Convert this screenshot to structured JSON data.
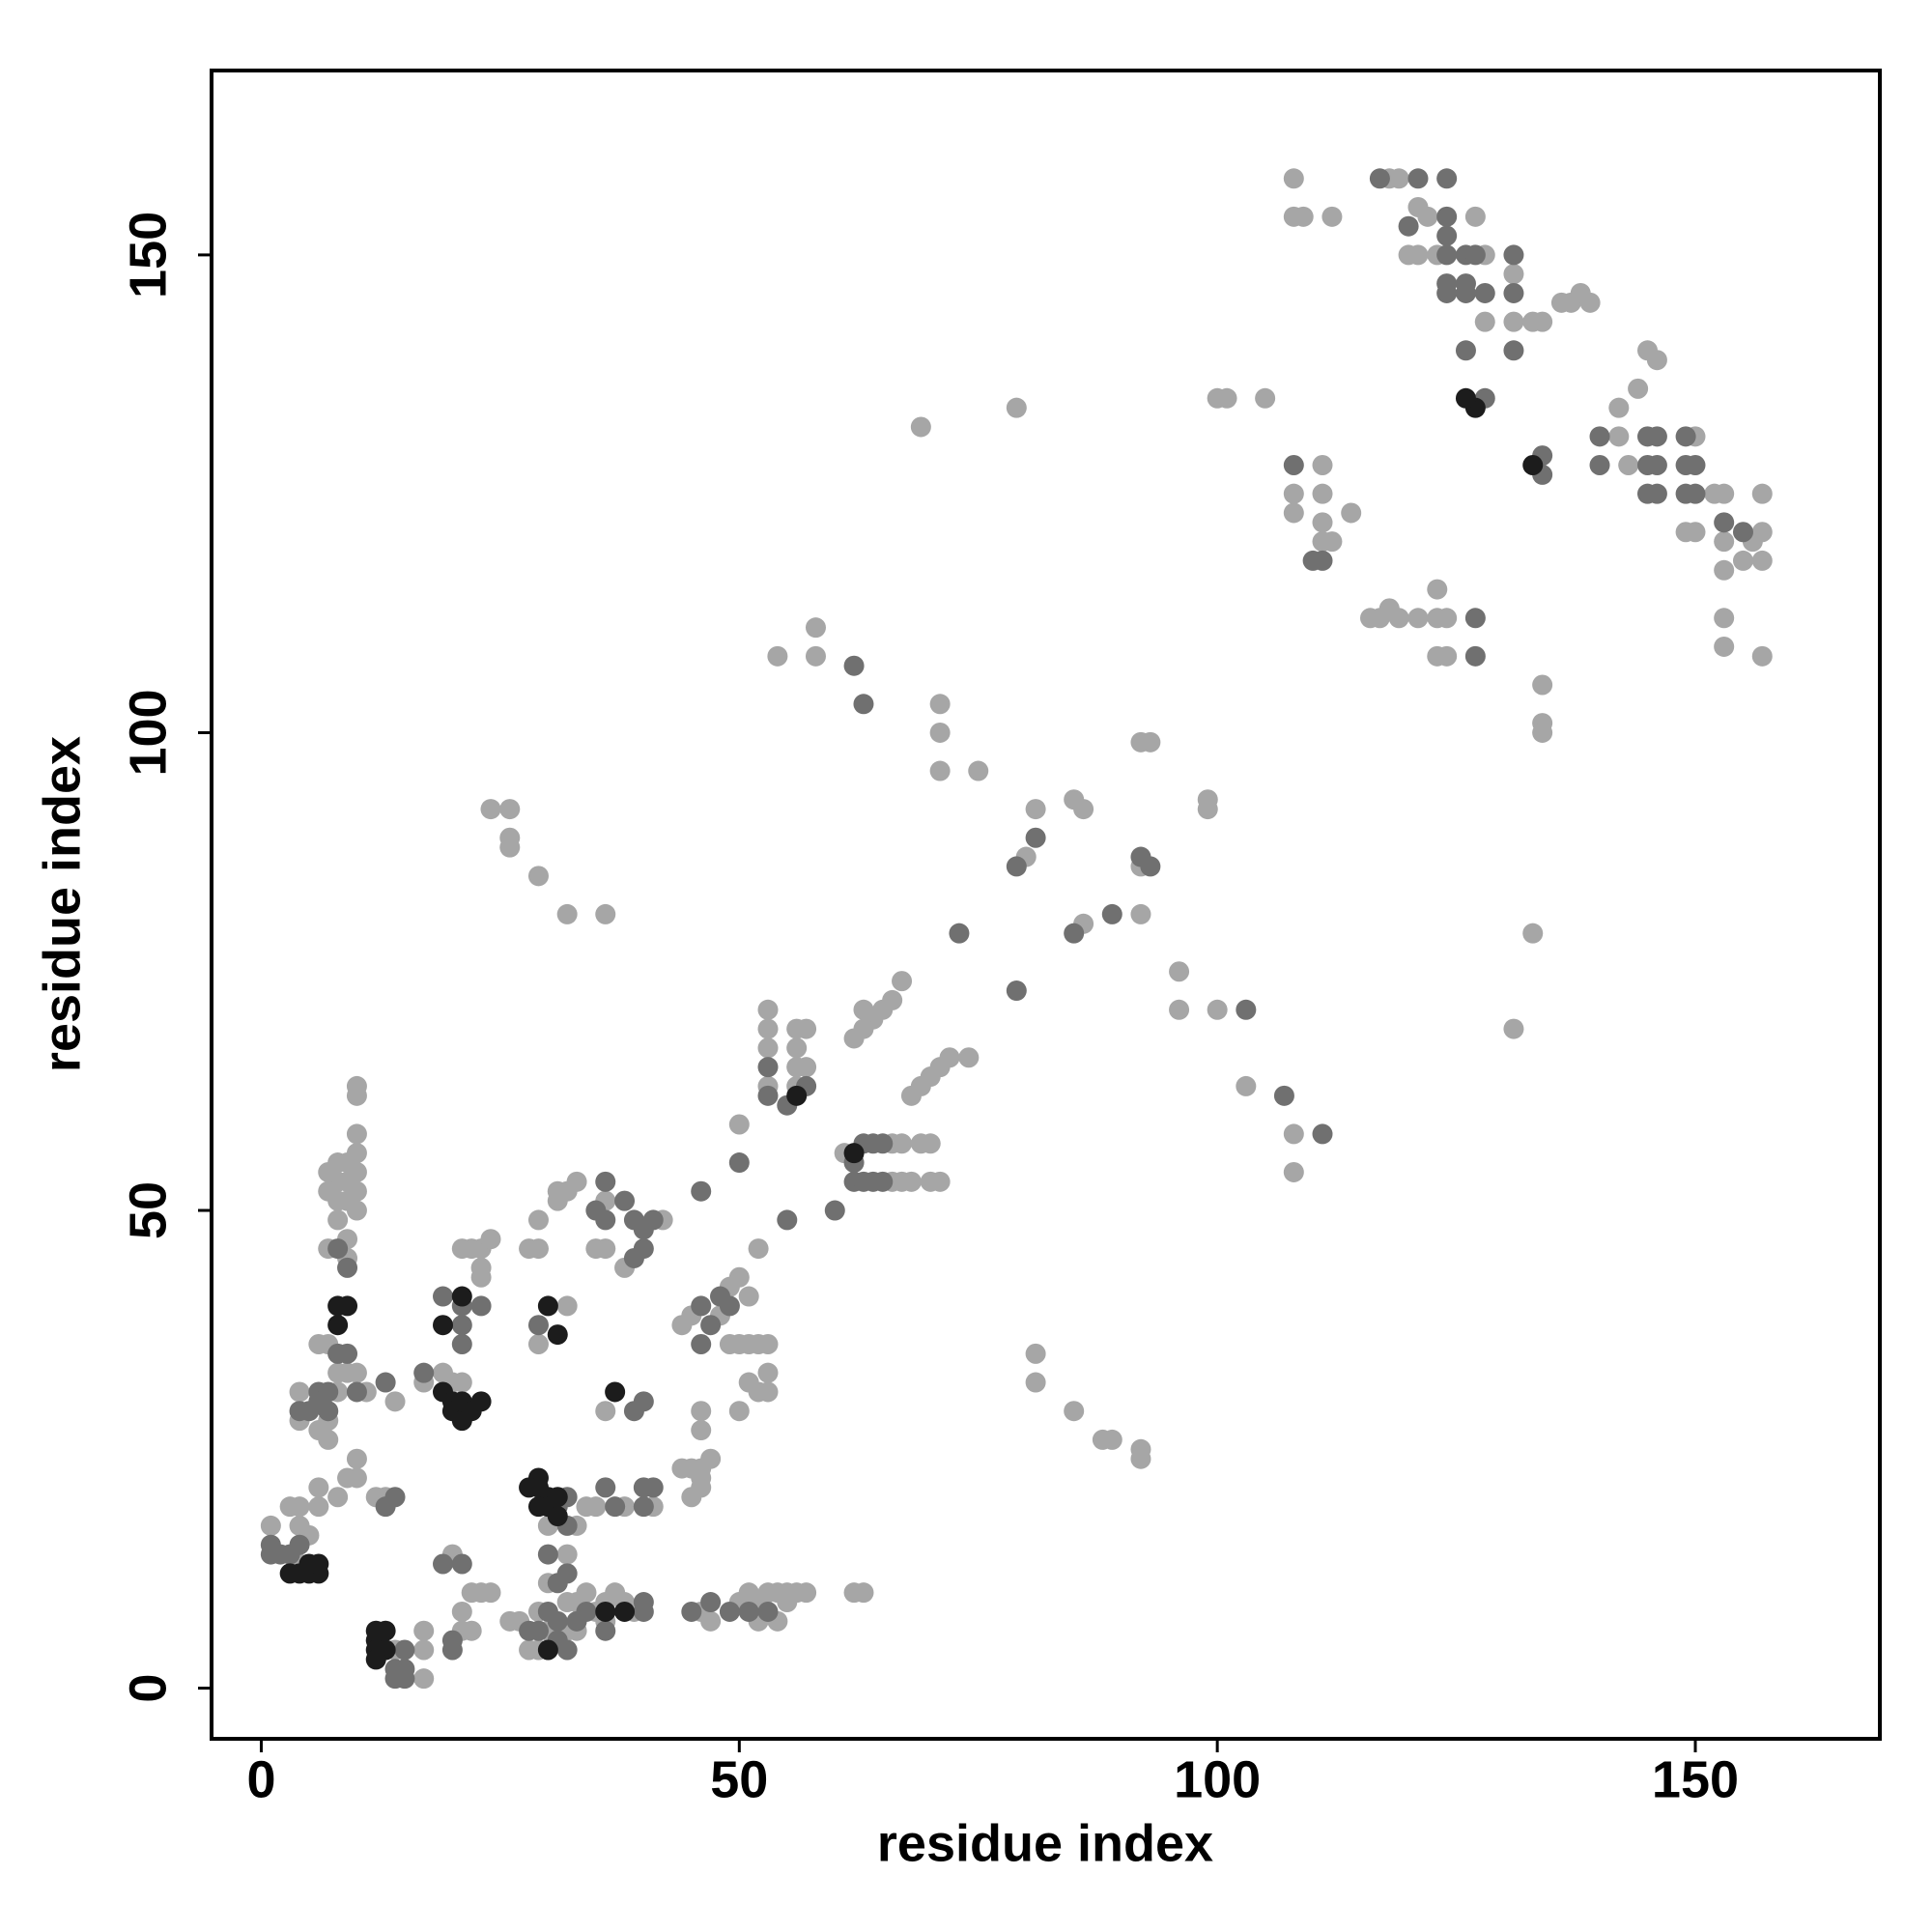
{
  "chart_data": {
    "type": "scatter",
    "xlabel": "residue index",
    "ylabel": "residue index",
    "xlim": [
      -5.2,
      169.3
    ],
    "ylim": [
      -5.3,
      169.3
    ],
    "xticks": [
      0,
      50,
      100,
      150
    ],
    "yticks": [
      0,
      50,
      100,
      150
    ],
    "series": [
      {
        "color": "#a6a6a6",
        "x": [
          108,
          108,
          109,
          112,
          118,
          119,
          121,
          122,
          120,
          121,
          123,
          127,
          128,
          128,
          131,
          131,
          133,
          134,
          136,
          137,
          138,
          139,
          145,
          146,
          144,
          142,
          142,
          143,
          150,
          149,
          150,
          152,
          153,
          153,
          155,
          156,
          157,
          157,
          157,
          153,
          153,
          153,
          157,
          108,
          108,
          111,
          111,
          111,
          111,
          112,
          114,
          100,
          101,
          105,
          69,
          79,
          116,
          117,
          118,
          119,
          121,
          123,
          123,
          124,
          123,
          124,
          134,
          134,
          134,
          133,
          131,
          54,
          58,
          58,
          71,
          71,
          71,
          75,
          92,
          93,
          99,
          99,
          81,
          85,
          86,
          80,
          92,
          86,
          92,
          96,
          96,
          100,
          103,
          108,
          108,
          24,
          26,
          26,
          26,
          29,
          32,
          36,
          63,
          64,
          65,
          66,
          67,
          62,
          63,
          68,
          69,
          70,
          71,
          72,
          74,
          69,
          70,
          70,
          71,
          66,
          67,
          61,
          66,
          67,
          68,
          50,
          53,
          53,
          53,
          53,
          56,
          56,
          56,
          57,
          57,
          56,
          52,
          81,
          81,
          85,
          88,
          89,
          92,
          92,
          8,
          8,
          8,
          8,
          9,
          9,
          9,
          9,
          9,
          10,
          10,
          10,
          10,
          10,
          10,
          10,
          7,
          7,
          7,
          6,
          7,
          8,
          9,
          8,
          7,
          7,
          6,
          4,
          4,
          10,
          11,
          14,
          10,
          10,
          9,
          8,
          6,
          6,
          5,
          3,
          4,
          1,
          4,
          4,
          12,
          13,
          14,
          17,
          17,
          17,
          21,
          21,
          22,
          22,
          23,
          24,
          20,
          22,
          23,
          24,
          23,
          23,
          21,
          19,
          21,
          20,
          17,
          28,
          29,
          29,
          31,
          32,
          33,
          31,
          29,
          32,
          30,
          33,
          34,
          35,
          32,
          30,
          26,
          27,
          28,
          29,
          29,
          30,
          32,
          32,
          33,
          33,
          34,
          35,
          36,
          36,
          37,
          38,
          39,
          36,
          35,
          36,
          38,
          42,
          36,
          38,
          41,
          44,
          45,
          46,
          47,
          46,
          46,
          45,
          46,
          47,
          50,
          51,
          52,
          52,
          53,
          54,
          54,
          55,
          55,
          56,
          57,
          62,
          63,
          44,
          45,
          48,
          49,
          50,
          51,
          49,
          50,
          51,
          52,
          53,
          51,
          52,
          53,
          53,
          46,
          46,
          50
        ],
        "values": [
          158,
          154,
          154,
          154,
          158,
          158,
          155,
          154,
          150,
          150,
          150,
          154,
          150,
          143,
          148,
          143,
          143,
          143,
          145,
          145,
          146,
          145,
          140,
          139,
          136,
          134,
          131,
          128,
          131,
          121,
          121,
          125,
          125,
          120,
          118,
          120,
          125,
          121,
          118,
          117,
          112,
          109,
          108,
          125,
          123,
          128,
          125,
          122,
          120,
          120,
          123,
          135,
          135,
          135,
          132,
          134,
          112,
          112,
          113,
          112,
          112,
          112,
          115,
          112,
          108,
          108,
          105,
          101,
          100,
          79,
          69,
          108,
          108,
          111,
          103,
          100,
          96,
          96,
          99,
          99,
          93,
          92,
          92,
          93,
          92,
          87,
          86,
          80,
          81,
          75,
          71,
          71,
          63,
          58,
          54,
          92,
          92,
          89,
          88,
          85,
          81,
          81,
          71,
          70,
          71,
          72,
          74,
          68,
          69,
          62,
          63,
          64,
          65,
          66,
          66,
          57,
          57,
          53,
          53,
          57,
          57,
          56,
          53,
          53,
          53,
          59,
          71,
          69,
          67,
          63,
          63,
          65,
          67,
          65,
          69,
          69,
          46,
          35,
          32,
          29,
          26,
          26,
          25,
          24,
          55,
          53,
          51,
          49,
          55,
          53,
          51,
          47,
          45,
          56,
          54,
          52,
          50,
          58,
          62,
          63,
          54,
          52,
          46,
          36,
          36,
          33,
          33,
          31,
          28,
          26,
          27,
          31,
          28,
          33,
          31,
          30,
          24,
          22,
          22,
          20,
          21,
          19,
          16,
          19,
          19,
          17,
          13,
          17,
          20,
          20,
          4,
          1,
          4,
          6,
          6,
          8,
          6,
          10,
          10,
          10,
          14,
          46,
          46,
          47,
          44,
          43,
          46,
          33,
          32,
          32,
          32,
          46,
          46,
          49,
          52,
          52,
          53,
          51,
          36,
          40,
          17,
          17,
          19,
          19,
          14,
          11,
          7,
          7,
          4,
          8,
          4,
          6,
          9,
          6,
          9,
          6,
          10,
          8,
          9,
          7,
          10,
          9,
          8,
          51,
          46,
          46,
          44,
          49,
          29,
          19,
          19,
          23,
          23,
          23,
          24,
          22,
          21,
          20,
          8,
          7,
          9,
          10,
          9,
          7,
          10,
          10,
          7,
          9,
          10,
          10,
          10,
          10,
          10,
          38,
          39,
          39,
          42,
          43,
          41,
          36,
          36,
          36,
          36,
          36,
          32,
          31,
          33,
          31,
          29,
          27,
          29
        ]
      },
      {
        "color": "#707070",
        "x": [
          117,
          121,
          124,
          120,
          124,
          124,
          124,
          124,
          124,
          126,
          127,
          126,
          126,
          128,
          131,
          131,
          131,
          126,
          128,
          134,
          134,
          145,
          146,
          145,
          146,
          145,
          146,
          149,
          149,
          150,
          150,
          149,
          153,
          155,
          140,
          140,
          108,
          111,
          110,
          127,
          127,
          62,
          63,
          81,
          79,
          85,
          89,
          93,
          92,
          79,
          107,
          111,
          103,
          73,
          64,
          65,
          62,
          63,
          62,
          63,
          64,
          65,
          53,
          57,
          55,
          53,
          55,
          46,
          60,
          50,
          8,
          9,
          6,
          7,
          6,
          7,
          5,
          4,
          10,
          13,
          9,
          8,
          1,
          1,
          2,
          3,
          4,
          13,
          14,
          14,
          15,
          15,
          14,
          15,
          20,
          20,
          19,
          21,
          21,
          21,
          19,
          21,
          23,
          31,
          32,
          30,
          32,
          31,
          28,
          29,
          30,
          31,
          31,
          33,
          32,
          34,
          36,
          36,
          35,
          36,
          38,
          39,
          40,
          40,
          39,
          37,
          36,
          40,
          41,
          40,
          45,
          47,
          49,
          51,
          53,
          46,
          47,
          46,
          49,
          48,
          40,
          39,
          32,
          29,
          17,
          40,
          40,
          41
        ],
        "values": [
          158,
          158,
          158,
          153,
          154,
          152,
          150,
          147,
          146,
          150,
          150,
          147,
          146,
          146,
          150,
          146,
          140,
          140,
          135,
          129,
          127,
          131,
          131,
          128,
          128,
          125,
          125,
          131,
          128,
          128,
          125,
          125,
          122,
          121,
          131,
          128,
          128,
          118,
          118,
          108,
          112,
          107,
          103,
          89,
          86,
          79,
          81,
          86,
          87,
          73,
          62,
          58,
          71,
          79,
          57,
          57,
          55,
          57,
          53,
          53,
          53,
          53,
          62,
          63,
          61,
          65,
          49,
          52,
          50,
          55,
          35,
          35,
          31,
          31,
          30,
          29,
          29,
          29,
          31,
          32,
          44,
          46,
          15,
          14,
          14,
          14,
          15,
          19,
          20,
          2,
          4,
          2,
          1,
          1,
          5,
          4,
          13,
          13,
          38,
          36,
          41,
          40,
          40,
          19,
          17,
          14,
          12,
          11,
          6,
          6,
          8,
          7,
          5,
          7,
          4,
          8,
          6,
          53,
          50,
          49,
          51,
          49,
          48,
          46,
          45,
          19,
          21,
          21,
          21,
          19,
          8,
          9,
          8,
          8,
          8,
          40,
          38,
          36,
          40,
          41,
          30,
          29,
          20,
          38,
          33,
          8,
          9,
          49
        ]
      },
      {
        "color": "#1c1c1c",
        "x": [
          3,
          4,
          5,
          6,
          6,
          5,
          12,
          12,
          12,
          13,
          13,
          19,
          20,
          20,
          21,
          21,
          22,
          23,
          28,
          29,
          29,
          30,
          29,
          30,
          31,
          30,
          31,
          37,
          8,
          9,
          8,
          19,
          21,
          62,
          56,
          127,
          126,
          133,
          36,
          30,
          12,
          38,
          31
        ],
        "values": [
          12,
          12,
          12,
          12,
          13,
          13,
          6,
          5,
          4,
          6,
          4,
          31,
          30,
          29,
          28,
          30,
          29,
          30,
          21,
          22,
          21,
          20,
          19,
          19,
          20,
          40,
          37,
          31,
          40,
          40,
          38,
          38,
          41,
          56,
          62,
          134,
          135,
          128,
          8,
          4,
          3,
          8,
          18
        ]
      }
    ]
  }
}
